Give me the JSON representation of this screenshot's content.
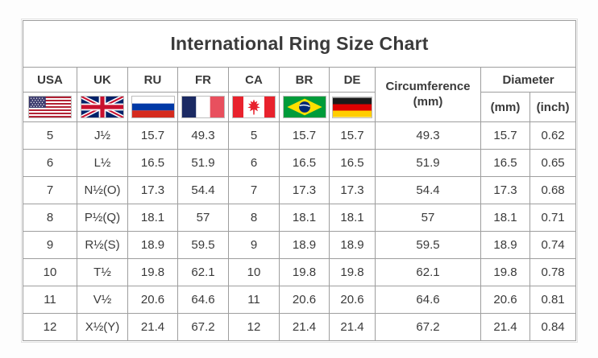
{
  "title": "International Ring Size Chart",
  "columns": [
    {
      "label": "USA",
      "icon": "usa-flag-icon"
    },
    {
      "label": "UK",
      "icon": "uk-flag-icon"
    },
    {
      "label": "RU",
      "icon": "russia-flag-icon"
    },
    {
      "label": "FR",
      "icon": "france-flag-icon"
    },
    {
      "label": "CA",
      "icon": "canada-flag-icon"
    },
    {
      "label": "BR",
      "icon": "brazil-flag-icon"
    },
    {
      "label": "DE",
      "icon": "germany-flag-icon"
    }
  ],
  "circumference_header": {
    "line1": "Circumference",
    "line2": "(mm)"
  },
  "diameter_header": {
    "label": "Diameter",
    "sub_mm": "(mm)",
    "sub_inch": "(inch)"
  },
  "rows": [
    {
      "usa": "5",
      "uk": "J½",
      "ru": "15.7",
      "fr": "49.3",
      "ca": "5",
      "br": "15.7",
      "de": "15.7",
      "circumference_mm": "49.3",
      "diameter_mm": "15.7",
      "diameter_inch": "0.62"
    },
    {
      "usa": "6",
      "uk": "L½",
      "ru": "16.5",
      "fr": "51.9",
      "ca": "6",
      "br": "16.5",
      "de": "16.5",
      "circumference_mm": "51.9",
      "diameter_mm": "16.5",
      "diameter_inch": "0.65"
    },
    {
      "usa": "7",
      "uk": "N½(O)",
      "ru": "17.3",
      "fr": "54.4",
      "ca": "7",
      "br": "17.3",
      "de": "17.3",
      "circumference_mm": "54.4",
      "diameter_mm": "17.3",
      "diameter_inch": "0.68"
    },
    {
      "usa": "8",
      "uk": "P½(Q)",
      "ru": "18.1",
      "fr": "57",
      "ca": "8",
      "br": "18.1",
      "de": "18.1",
      "circumference_mm": "57",
      "diameter_mm": "18.1",
      "diameter_inch": "0.71"
    },
    {
      "usa": "9",
      "uk": "R½(S)",
      "ru": "18.9",
      "fr": "59.5",
      "ca": "9",
      "br": "18.9",
      "de": "18.9",
      "circumference_mm": "59.5",
      "diameter_mm": "18.9",
      "diameter_inch": "0.74"
    },
    {
      "usa": "10",
      "uk": "T½",
      "ru": "19.8",
      "fr": "62.1",
      "ca": "10",
      "br": "19.8",
      "de": "19.8",
      "circumference_mm": "62.1",
      "diameter_mm": "19.8",
      "diameter_inch": "0.78"
    },
    {
      "usa": "11",
      "uk": "V½",
      "ru": "20.6",
      "fr": "64.6",
      "ca": "11",
      "br": "20.6",
      "de": "20.6",
      "circumference_mm": "64.6",
      "diameter_mm": "20.6",
      "diameter_inch": "0.81"
    },
    {
      "usa": "12",
      "uk": "X½(Y)",
      "ru": "21.4",
      "fr": "67.2",
      "ca": "12",
      "br": "21.4",
      "de": "21.4",
      "circumference_mm": "67.2",
      "diameter_mm": "21.4",
      "diameter_inch": "0.84"
    }
  ],
  "chart_data": {
    "type": "table",
    "title": "International Ring Size Chart",
    "columns": [
      "USA",
      "UK",
      "RU",
      "FR",
      "CA",
      "BR",
      "DE",
      "Circumference (mm)",
      "Diameter (mm)",
      "Diameter (inch)"
    ],
    "rows": [
      [
        "5",
        "J½",
        "15.7",
        "49.3",
        "5",
        "15.7",
        "15.7",
        "49.3",
        "15.7",
        "0.62"
      ],
      [
        "6",
        "L½",
        "16.5",
        "51.9",
        "6",
        "16.5",
        "16.5",
        "51.9",
        "16.5",
        "0.65"
      ],
      [
        "7",
        "N½(O)",
        "17.3",
        "54.4",
        "7",
        "17.3",
        "17.3",
        "54.4",
        "17.3",
        "0.68"
      ],
      [
        "8",
        "P½(Q)",
        "18.1",
        "57",
        "8",
        "18.1",
        "18.1",
        "57",
        "18.1",
        "0.71"
      ],
      [
        "9",
        "R½(S)",
        "18.9",
        "59.5",
        "9",
        "18.9",
        "18.9",
        "59.5",
        "18.9",
        "0.74"
      ],
      [
        "10",
        "T½",
        "19.8",
        "62.1",
        "10",
        "19.8",
        "19.8",
        "62.1",
        "19.8",
        "0.78"
      ],
      [
        "11",
        "V½",
        "20.6",
        "64.6",
        "11",
        "20.6",
        "20.6",
        "64.6",
        "20.6",
        "0.81"
      ],
      [
        "12",
        "X½(Y)",
        "21.4",
        "67.2",
        "12",
        "21.4",
        "21.4",
        "67.2",
        "21.4",
        "0.84"
      ]
    ]
  },
  "colors": {
    "border": "#9e9e9e",
    "text": "#3a3a3a",
    "background": "#ffffff"
  }
}
